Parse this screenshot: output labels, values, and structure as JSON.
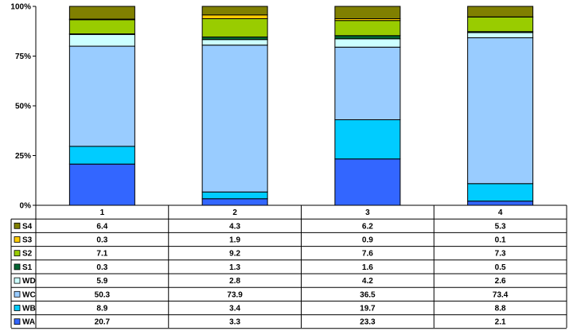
{
  "chart_data": {
    "type": "bar",
    "stacked": "percent",
    "categories": [
      "1",
      "2",
      "3",
      "4"
    ],
    "y_ticks": [
      "0%",
      "25%",
      "50%",
      "75%",
      "100%"
    ],
    "ylim": [
      0,
      100
    ],
    "grid": false,
    "legend": "data-table-rows",
    "series": [
      {
        "name": "WA",
        "color": "#3366ff",
        "values": [
          20.7,
          3.3,
          23.3,
          2.1
        ]
      },
      {
        "name": "WB",
        "color": "#00ccff",
        "values": [
          8.9,
          3.4,
          19.7,
          8.8
        ]
      },
      {
        "name": "WC",
        "color": "#99ccff",
        "values": [
          50.3,
          73.9,
          36.5,
          73.4
        ]
      },
      {
        "name": "WD",
        "color": "#ccffff",
        "values": [
          5.9,
          2.8,
          4.2,
          2.6
        ]
      },
      {
        "name": "S1",
        "color": "#006633",
        "values": [
          0.3,
          1.3,
          1.6,
          0.5
        ]
      },
      {
        "name": "S2",
        "color": "#99cc00",
        "values": [
          7.1,
          9.2,
          7.6,
          7.3
        ]
      },
      {
        "name": "S3",
        "color": "#ffcc00",
        "values": [
          0.3,
          1.9,
          0.9,
          0.1
        ]
      },
      {
        "name": "S4",
        "color": "#808000",
        "values": [
          6.4,
          4.3,
          6.2,
          5.3
        ]
      }
    ],
    "table_values": {
      "S4": [
        "6.4",
        "4.3",
        "6.2",
        "5.3"
      ],
      "S3": [
        "0.3",
        "1.9",
        "0.9",
        "0.1"
      ],
      "S2": [
        "7.1",
        "9.2",
        "7.6",
        "7.3"
      ],
      "S1": [
        "0.3",
        "1.3",
        "1.6",
        "0.5"
      ],
      "WD": [
        "5.9",
        "2.8",
        "4.2",
        "2.6"
      ],
      "WC": [
        "50.3",
        "73.9",
        "36.5",
        "73.4"
      ],
      "WB": [
        "8.9",
        "3.4",
        "19.7",
        "8.8"
      ],
      "WA": [
        "20.7",
        "3.3",
        "23.3",
        "2.1"
      ]
    },
    "table_row_order": [
      "S4",
      "S3",
      "S2",
      "S1",
      "WD",
      "WC",
      "WB",
      "WA"
    ]
  }
}
